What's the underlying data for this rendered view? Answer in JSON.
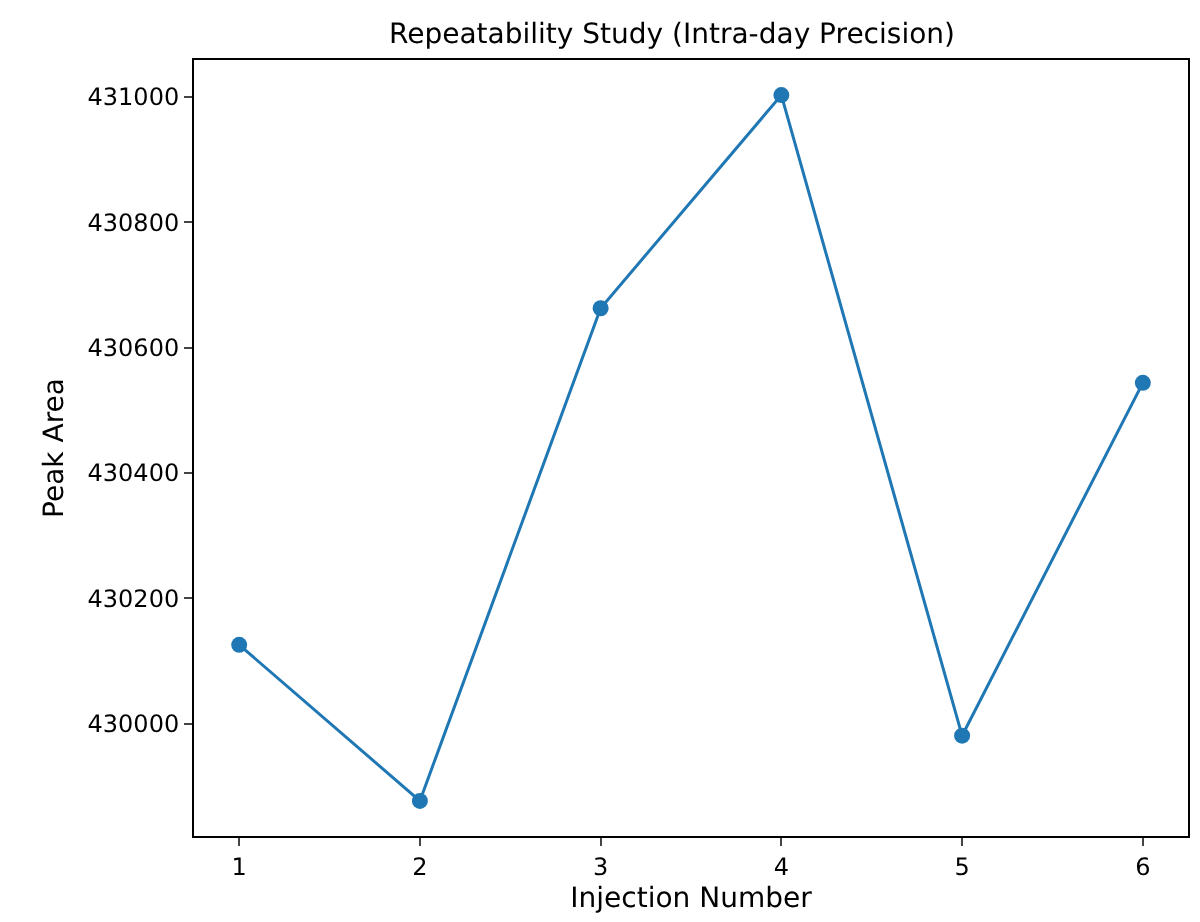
{
  "chart_data": {
    "type": "line",
    "title": "Repeatability Study (Intra-day Precision)",
    "xlabel": "Injection Number",
    "ylabel": "Peak Area",
    "x": [
      1,
      2,
      3,
      4,
      5,
      6
    ],
    "series": [
      {
        "color": "#1f77b4",
        "values": [
          430126,
          429877,
          430663,
          431003,
          429981,
          430544
        ]
      }
    ],
    "xlim": [
      0.75,
      6.25
    ],
    "xticks": [
      1,
      2,
      3,
      4,
      5,
      6
    ],
    "ylim": [
      429821,
      431059
    ],
    "yticks": [
      430000,
      430200,
      430400,
      430600,
      430800,
      431000
    ],
    "marker": "circle",
    "line_style": "solid"
  }
}
